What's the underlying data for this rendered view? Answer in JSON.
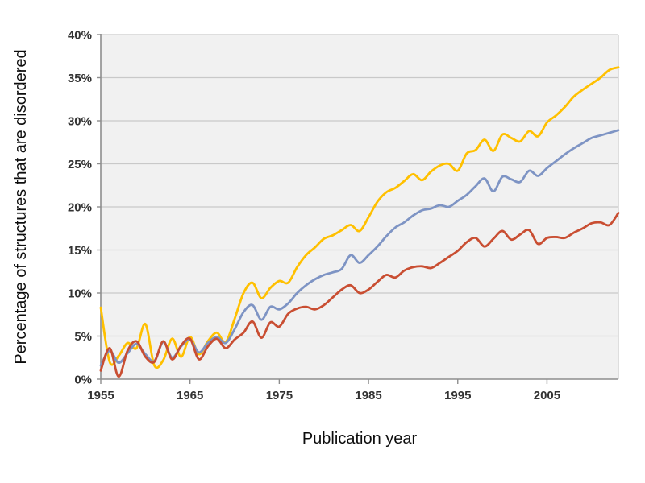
{
  "chart_data": {
    "type": "line",
    "title": "",
    "xlabel": "Publication year",
    "ylabel": "Percentage of structures that are disordered",
    "xlim": [
      1955,
      2013
    ],
    "ylim": [
      0,
      40
    ],
    "x_start": 1955,
    "x_step": 1,
    "x_tick_years": [
      "1955",
      "1965",
      "1975",
      "1985",
      "1995",
      "2005"
    ],
    "y_tick_values": [
      0,
      5,
      10,
      15,
      20,
      25,
      30,
      35,
      40
    ],
    "y_tick_labels": [
      "0%",
      "5%",
      "10%",
      "15%",
      "20%",
      "25%",
      "30%",
      "35%",
      "40%"
    ],
    "grid": "horizontal-gridlines",
    "legend": "none",
    "plot_background": "#F1F1F1",
    "gridline_color": "#C9C9C9",
    "axis_line_color": "#8E8E8E",
    "series": [
      {
        "id": "yellow",
        "color": "#FFC000",
        "values": [
          8.3,
          2.0,
          2.7,
          4.2,
          3.6,
          6.4,
          1.6,
          2.2,
          4.7,
          2.6,
          4.9,
          2.9,
          4.4,
          5.4,
          4.3,
          7.0,
          10.0,
          11.2,
          9.4,
          10.6,
          11.4,
          11.2,
          13.0,
          14.4,
          15.3,
          16.3,
          16.7,
          17.3,
          17.9,
          17.2,
          18.8,
          20.6,
          21.7,
          22.2,
          23.0,
          23.8,
          23.1,
          24.1,
          24.8,
          25.0,
          24.2,
          26.2,
          26.6,
          27.8,
          26.5,
          28.4,
          28.0,
          27.6,
          28.8,
          28.2,
          29.8,
          30.6,
          31.6,
          32.8,
          33.6,
          34.3,
          35.0,
          35.9,
          36.2
        ]
      },
      {
        "id": "blue",
        "color": "#7E94C4",
        "values": [
          1.6,
          3.3,
          1.9,
          3.0,
          4.1,
          2.9,
          2.1,
          4.3,
          2.5,
          3.8,
          4.6,
          3.1,
          4.2,
          4.9,
          4.2,
          5.8,
          7.8,
          8.6,
          6.9,
          8.4,
          8.1,
          8.8,
          10.0,
          10.9,
          11.6,
          12.1,
          12.4,
          12.8,
          14.4,
          13.5,
          14.4,
          15.4,
          16.6,
          17.6,
          18.2,
          19.0,
          19.6,
          19.8,
          20.2,
          20.0,
          20.7,
          21.4,
          22.4,
          23.3,
          21.8,
          23.5,
          23.2,
          22.9,
          24.2,
          23.6,
          24.5,
          25.3,
          26.1,
          26.8,
          27.4,
          28.0,
          28.3,
          28.6,
          28.9
        ]
      },
      {
        "id": "red",
        "color": "#C94E32",
        "values": [
          1.0,
          3.6,
          0.3,
          3.3,
          4.4,
          2.6,
          2.0,
          4.4,
          2.3,
          3.9,
          4.7,
          2.3,
          3.8,
          4.7,
          3.6,
          4.6,
          5.4,
          6.7,
          4.8,
          6.6,
          6.1,
          7.6,
          8.2,
          8.4,
          8.1,
          8.6,
          9.5,
          10.4,
          10.9,
          10.0,
          10.4,
          11.3,
          12.1,
          11.8,
          12.6,
          13.0,
          13.1,
          12.9,
          13.5,
          14.2,
          14.9,
          15.9,
          16.4,
          15.4,
          16.3,
          17.2,
          16.2,
          16.8,
          17.3,
          15.7,
          16.4,
          16.5,
          16.4,
          17.0,
          17.5,
          18.1,
          18.2,
          17.9,
          19.3
        ]
      }
    ]
  }
}
